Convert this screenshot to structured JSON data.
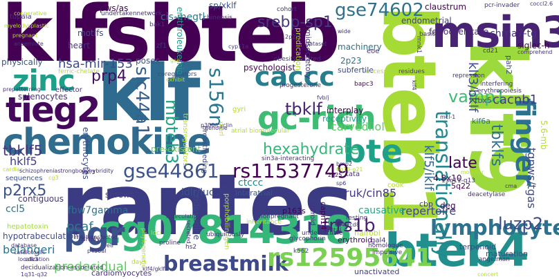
{
  "words": [
    {
      "text": "klfsbteb",
      "color": "#440154"
    },
    {
      "text": "rantes",
      "color": "#3b3b84"
    },
    {
      "text": "klf",
      "color": "#2f6b8e"
    },
    {
      "text": "bteb1",
      "color": "#a6db36"
    },
    {
      "text": "klf9",
      "color": "#9bd93c"
    },
    {
      "text": "bteb4",
      "color": "#21908c"
    },
    {
      "text": "msin3a",
      "color": "#482374"
    },
    {
      "text": "chemokine",
      "color": "#2f6c8e"
    },
    {
      "text": "tieg2",
      "color": "#46085c"
    },
    {
      "text": "cg07814318",
      "color": "#35b779"
    },
    {
      "text": "gc-rich",
      "color": "#3fbc73"
    },
    {
      "text": "zinc",
      "color": "#1f9e89"
    },
    {
      "text": "bte",
      "color": "#1fa187"
    },
    {
      "text": "pgr",
      "color": "#3b528b"
    },
    {
      "text": "caccc",
      "color": "#277f8e"
    },
    {
      "text": "finger",
      "color": "#2c728e"
    },
    {
      "text": "lymphocytes",
      "color": "#2c728e"
    },
    {
      "text": "breastmilk",
      "color": "#3e4989"
    },
    {
      "text": "rs12595641",
      "color": "#7ad151"
    },
    {
      "text": "translationally",
      "color": "#23898e"
    },
    {
      "text": "rs11537749",
      "color": "#440154"
    },
    {
      "text": "gse44861",
      "color": "#3b528b"
    },
    {
      "text": "tbklf",
      "color": "#482475"
    },
    {
      "text": "s156n",
      "color": "#2a788e"
    },
    {
      "text": "slc44a1",
      "color": "#35608d"
    },
    {
      "text": "gse74602",
      "color": "#2c728e"
    },
    {
      "text": "hexahydrate",
      "color": "#35b779"
    },
    {
      "text": "mbteb3",
      "color": "#20a486"
    },
    {
      "text": "srebp-sp1",
      "color": "#443a83"
    },
    {
      "text": "frrs1b",
      "color": "#482173"
    },
    {
      "text": "luzp2",
      "color": "#3e4989"
    },
    {
      "text": "vamp1",
      "color": "#3fbc73"
    },
    {
      "text": "cacnb1",
      "color": "#453781"
    },
    {
      "text": "tbklf5",
      "color": "#46337e"
    },
    {
      "text": "prp4",
      "color": "#470d60"
    },
    {
      "text": "hsa-mir-153",
      "color": "#3e4a89"
    },
    {
      "text": "p2rx5",
      "color": "#3b528b"
    },
    {
      "text": "hklf5",
      "color": "#433e85"
    },
    {
      "text": "late",
      "color": "#440154"
    },
    {
      "text": "carvedilol",
      "color": "#5ec962"
    },
    {
      "text": "ruk/cin85",
      "color": "#453781"
    },
    {
      "text": "repertoire",
      "color": "#414487"
    },
    {
      "text": "predecidual",
      "color": "#5cc863"
    },
    {
      "text": "pcaf",
      "color": "#2a788e"
    },
    {
      "text": "belangeri",
      "color": "#2c728e"
    },
    {
      "text": "fbw7gamma",
      "color": "#2d708e"
    },
    {
      "text": "ldlr/luc",
      "color": "#3b528b"
    },
    {
      "text": "causative",
      "color": "#22a884"
    },
    {
      "text": "ctccc",
      "color": "#25858e"
    },
    {
      "text": "interplay",
      "color": "#440154"
    },
    {
      "text": "receptivity",
      "color": "#1f9e89"
    },
    {
      "text": "tbklfs",
      "color": "#2d708e"
    },
    {
      "text": "klf5/iklf",
      "color": "#31688e"
    },
    {
      "text": "klf3/bklf",
      "color": "#3e4989"
    },
    {
      "text": "tgpws/tgas",
      "color": "#3e4a89"
    },
    {
      "text": "5.6-mb",
      "color": "#b5de2b"
    },
    {
      "text": "chrna7-tg",
      "color": "#46327e"
    },
    {
      "text": "ferrochelatase",
      "color": "#482475"
    },
    {
      "text": "claustrum",
      "color": "#440154"
    },
    {
      "text": "endometrial",
      "color": "#433e85"
    },
    {
      "text": "siglec-h",
      "color": "#440154"
    },
    {
      "text": "pah2",
      "color": "#3e4a89"
    },
    {
      "text": "cis-megtl",
      "color": "#29798e"
    },
    {
      "text": "sp/xklf",
      "color": "#3b528b"
    },
    {
      "text": "pws/as",
      "color": "#440154"
    },
    {
      "text": "motifs",
      "color": "#3e4a89"
    },
    {
      "text": "heart",
      "color": "#46327e"
    },
    {
      "text": "poses",
      "color": "#3b528b"
    },
    {
      "text": "psychologist",
      "color": "#440154"
    },
    {
      "text": "machinery",
      "color": "#2c728e"
    },
    {
      "text": "2p23",
      "color": "#2c728e"
    },
    {
      "text": "subfertile",
      "color": "#3e4989"
    },
    {
      "text": "erythroleukemia",
      "color": "#1f9e89"
    },
    {
      "text": "physically",
      "color": "#3b528b"
    },
    {
      "text": "splenocytes",
      "color": "#46327e"
    },
    {
      "text": "erythrocytes",
      "color": "#3e4a89"
    },
    {
      "text": "shrews",
      "color": "#433e85"
    },
    {
      "text": "contiguous",
      "color": "#46327e"
    },
    {
      "text": "ccl5",
      "color": "#2c728e"
    },
    {
      "text": "hypotrabeculation",
      "color": "#3e4a89"
    },
    {
      "text": "cardiomyocytes",
      "color": "#46327e"
    },
    {
      "text": "zidovudine",
      "color": "#3e4989"
    },
    {
      "text": "interatrial",
      "color": "#3b528b"
    },
    {
      "text": "p163s",
      "color": "#440154"
    },
    {
      "text": "capn14",
      "color": "#440154"
    },
    {
      "text": "erythroid",
      "color": "#440154"
    },
    {
      "text": "nairobi",
      "color": "#b5de2b"
    },
    {
      "text": "terpenoid",
      "color": "#414487"
    },
    {
      "text": "maturation",
      "color": "#3e4a89"
    },
    {
      "text": "angelman",
      "color": "#46327e"
    },
    {
      "text": "unactivated",
      "color": "#433e85"
    },
    {
      "text": "4.8x10",
      "color": "#440154"
    },
    {
      "text": "5q22",
      "color": "#440154"
    },
    {
      "text": "deg",
      "color": "#440154"
    },
    {
      "text": "cbp",
      "color": "#46327e"
    },
    {
      "text": "klf6a",
      "color": "#2c728e"
    },
    {
      "text": "tbx5",
      "color": "#3e4a89"
    },
    {
      "text": "pre-existent",
      "color": "#6ece58"
    },
    {
      "text": "hepatotoxin",
      "color": "#a0da39"
    },
    {
      "text": "sequences",
      "color": "#3b528b"
    },
    {
      "text": "effector",
      "color": "#46327e"
    },
    {
      "text": "tupaia",
      "color": "#46327e"
    },
    {
      "text": "undertakennetwork",
      "color": "#46327e"
    },
    {
      "text": "coregulators",
      "color": "#3e4a89"
    },
    {
      "text": "breastfeeding",
      "color": "#3e4a89"
    },
    {
      "text": "progesterone",
      "color": "#46327e"
    },
    {
      "text": "steroid",
      "color": "#46327e"
    },
    {
      "text": "gal4",
      "color": "#46327e"
    },
    {
      "text": "k562",
      "color": "#3e4a89"
    },
    {
      "text": "bapc3",
      "color": "#440154"
    },
    {
      "text": "zf1",
      "color": "#46327e"
    },
    {
      "text": "bak1",
      "color": "#46327e"
    },
    {
      "text": "gyri",
      "color": "#b5de2b"
    },
    {
      "text": "cook",
      "color": "#b5de2b"
    },
    {
      "text": "tata",
      "color": "#46327e"
    },
    {
      "text": "cd21",
      "color": "#46327e"
    },
    {
      "text": "mnk1",
      "color": "#46327e"
    },
    {
      "text": "eoe",
      "color": "#46327e"
    },
    {
      "text": "cohort",
      "color": "#46327e"
    },
    {
      "text": "basic",
      "color": "#46327e"
    },
    {
      "text": "pcr-invader",
      "color": "#46327e"
    },
    {
      "text": "success",
      "color": "#b5de2b"
    },
    {
      "text": "residues",
      "color": "#46327e"
    },
    {
      "text": "pregnant",
      "color": "#b5de2b"
    },
    {
      "text": "proline",
      "color": "#46327e"
    },
    {
      "text": "family",
      "color": "#46327e"
    },
    {
      "text": "loci",
      "color": "#b5de2b"
    },
    {
      "text": "days",
      "color": "#b5de2b"
    },
    {
      "text": "mcl-1",
      "color": "#46327e"
    },
    {
      "text": "cooperative",
      "color": "#b5de2b"
    },
    {
      "text": "interfering",
      "color": "#46327e"
    },
    {
      "text": "erythropoiesis",
      "color": "#46327e"
    },
    {
      "text": "repression",
      "color": "#46327e"
    },
    {
      "text": "deacetylase",
      "color": "#46327e"
    },
    {
      "text": "comprehend",
      "color": "#46327e"
    },
    {
      "text": "coccl2.6",
      "color": "#46327e"
    },
    {
      "text": "hs2",
      "color": "#46327e"
    },
    {
      "text": "wide",
      "color": "#46327e"
    },
    {
      "text": "ubiquitously",
      "color": "#46327e"
    },
    {
      "text": "septal",
      "color": "#46327e"
    },
    {
      "text": "homologue",
      "color": "#46327e"
    },
    {
      "text": "impulsive",
      "color": "#46327e"
    },
    {
      "text": "resting",
      "color": "#46327e"
    },
    {
      "text": "15q11-q13",
      "color": "#46327e"
    },
    {
      "text": "modifier",
      "color": "#b5de2b"
    },
    {
      "text": "concert",
      "color": "#b5de2b"
    },
    {
      "text": "predication",
      "color": "#b5de2b"
    },
    {
      "text": "midsecretory",
      "color": "#46327e"
    },
    {
      "text": "obesity-related",
      "color": "#46327e"
    },
    {
      "text": "chinensis",
      "color": "#46327e"
    },
    {
      "text": "database",
      "color": "#46327e"
    },
    {
      "text": "cardiotoxin",
      "color": "#46327e"
    },
    {
      "text": "localization",
      "color": "#46327e"
    },
    {
      "text": "secreted",
      "color": "#46327e"
    },
    {
      "text": "glycophorin",
      "color": "#46327e"
    },
    {
      "text": "undetectable",
      "color": "#46327e"
    },
    {
      "text": "porphobilinogen",
      "color": "#b5de2b"
    },
    {
      "text": "cd4+cd8",
      "color": "#46327e"
    },
    {
      "text": "sin3a-interacting",
      "color": "#46327e"
    },
    {
      "text": "atrial biomolecular",
      "color": "#b5de2b"
    },
    {
      "text": "genome",
      "color": "#46327e"
    },
    {
      "text": "inheritance",
      "color": "#b5de2b"
    },
    {
      "text": "nonpregnant",
      "color": "#46327e"
    },
    {
      "text": "recirculating",
      "color": "#46327e"
    },
    {
      "text": "box",
      "color": "#46327e"
    },
    {
      "text": "transregulators",
      "color": "#b5de2b"
    },
    {
      "text": "exhibit",
      "color": "#b5de2b"
    },
    {
      "text": "p300/cyclin",
      "color": "#46327e"
    },
    {
      "text": "rna-transfected",
      "color": "#46327e"
    },
    {
      "text": "klf4/gklf",
      "color": "#46327e"
    },
    {
      "text": "decidualization-associated",
      "color": "#46327e"
    },
    {
      "text": "1q31-q32",
      "color": "#46327e"
    },
    {
      "text": "cdk3",
      "color": "#46327e"
    },
    {
      "text": "p450al",
      "color": "#46327e"
    },
    {
      "text": "e8",
      "color": "#46327e"
    },
    {
      "text": "ferric-chelate",
      "color": "#b5de2b"
    },
    {
      "text": "prepatterning",
      "color": "#46327e"
    },
    {
      "text": "anaemiote",
      "color": "#46327e"
    },
    {
      "text": "cardiac",
      "color": "#b5de2b"
    },
    {
      "text": "schizophreniastrongbodyhybridity",
      "color": "#46327e"
    },
    {
      "text": "cg3",
      "color": "#b5de2b"
    },
    {
      "text": "tnfr3",
      "color": "#46327e"
    },
    {
      "text": "cyp11a",
      "color": "#46327e"
    },
    {
      "text": "dataset",
      "color": "#46327e"
    },
    {
      "text": "6q16-q21",
      "color": "#b5de2b"
    },
    {
      "text": "sp6",
      "color": "#46327e"
    },
    {
      "text": "bmp2",
      "color": "#46327e"
    },
    {
      "text": "cma",
      "color": "#46327e"
    },
    {
      "text": "gse",
      "color": "#b5de2b"
    },
    {
      "text": "2q25",
      "color": "#440154"
    },
    {
      "text": "2p25",
      "color": "#440154"
    },
    {
      "text": "uterl",
      "color": "#b5de2b"
    },
    {
      "text": "fvb/j",
      "color": "#46327e"
    },
    {
      "text": "klf4",
      "color": "#46327e"
    },
    {
      "text": "myelodysplastic",
      "color": "#b5de2b"
    },
    {
      "text": "phylogenetic",
      "color": "#b5de2b"
    },
    {
      "text": "2p25",
      "color": "#46327e"
    }
  ]
}
